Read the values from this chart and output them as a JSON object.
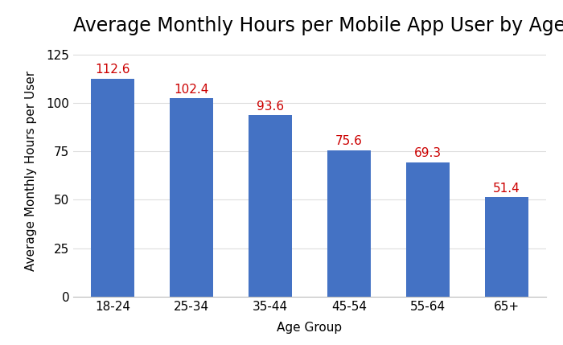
{
  "title": "Average Monthly Hours per Mobile App User by Age",
  "categories": [
    "18-24",
    "25-34",
    "35-44",
    "45-54",
    "55-64",
    "65+"
  ],
  "values": [
    112.6,
    102.4,
    93.6,
    75.6,
    69.3,
    51.4
  ],
  "bar_color": "#4472C4",
  "label_color": "#CC0000",
  "xlabel": "Age Group",
  "ylabel": "Average Monthly Hours per User",
  "ylim": [
    0,
    130
  ],
  "yticks": [
    0,
    25,
    50,
    75,
    100,
    125
  ],
  "background_color": "#FFFFFF",
  "title_fontsize": 17,
  "axis_label_fontsize": 11,
  "tick_fontsize": 11,
  "annotation_fontsize": 11
}
